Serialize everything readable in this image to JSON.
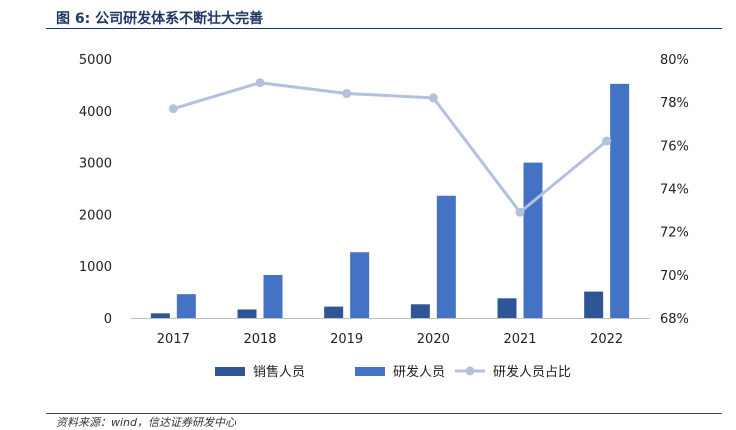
{
  "header": {
    "title": "图 6:  公司研发体系不断壮大完善"
  },
  "footer": {
    "source": "资料来源：wind，信达证券研发中心"
  },
  "chart_data": {
    "type": "bar",
    "categories": [
      "2017",
      "2018",
      "2019",
      "2020",
      "2021",
      "2022"
    ],
    "series": [
      {
        "name": "销售人员",
        "kind": "bar",
        "axis": "left",
        "color": "#2f5597",
        "values": [
          90,
          165,
          220,
          265,
          380,
          510
        ]
      },
      {
        "name": "研发人员",
        "kind": "bar",
        "axis": "left",
        "color": "#4472c4",
        "values": [
          460,
          830,
          1270,
          2360,
          3000,
          4520
        ]
      },
      {
        "name": "研发人员占比",
        "kind": "line",
        "axis": "right",
        "color": "#b4c0e0",
        "values": [
          77.7,
          78.9,
          78.4,
          78.2,
          72.9,
          76.2
        ]
      }
    ],
    "y_left": {
      "lim": [
        0,
        5000
      ],
      "ticks": [
        0,
        1000,
        2000,
        3000,
        4000,
        5000
      ]
    },
    "y_right": {
      "lim": [
        68,
        80
      ],
      "ticks": [
        68,
        70,
        72,
        74,
        76,
        78,
        80
      ],
      "unit": "%"
    },
    "grid": false,
    "legend_position": "bottom",
    "xlabel": "",
    "ylabel": ""
  }
}
